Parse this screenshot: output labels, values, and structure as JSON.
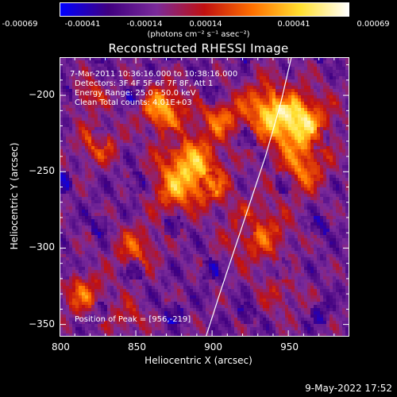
{
  "colorbar": {
    "ticks": [
      "-0.00069",
      "-0.00041",
      "-0.00014",
      "0.00014",
      "0.00041",
      "0.00069"
    ],
    "units": "(photons cm⁻² s⁻¹ asec⁻²)",
    "colors": [
      "#0000ff",
      "#400080",
      "#7a2a9a",
      "#c01010",
      "#ff7000",
      "#ffe030",
      "#ffffff"
    ]
  },
  "chart_data": {
    "type": "heatmap",
    "title": "Reconstructed RHESSI Image",
    "xlabel": "Heliocentric X (arcsec)",
    "ylabel": "Heliocentric Y (arcsec)",
    "xlim": [
      800,
      990
    ],
    "ylim": [
      -358,
      -175
    ],
    "xticks": [
      800,
      850,
      900,
      950
    ],
    "yticks": [
      -200,
      -250,
      -300,
      -350
    ],
    "annotations": {
      "time": "7-Mar-2011 10:36:16.000 to 10:38:16.000",
      "detectors": "Detectors: 3F 4F 5F 6F 7F 8F, Att 1",
      "energy": "Energy Range: 25.0 - 50.0 keV",
      "method": "Clean     Total counts: 4.01E+03",
      "peak": "Position of Peak = [956,-219]"
    },
    "peak": [
      956,
      -219
    ],
    "limb_curve": [
      [
        896,
        -358
      ],
      [
        905,
        -330
      ],
      [
        915,
        -300
      ],
      [
        925,
        -270
      ],
      [
        935,
        -240
      ],
      [
        945,
        -205
      ],
      [
        952,
        -175
      ]
    ]
  },
  "footer": {
    "date": "9-May-2022 17:52"
  }
}
